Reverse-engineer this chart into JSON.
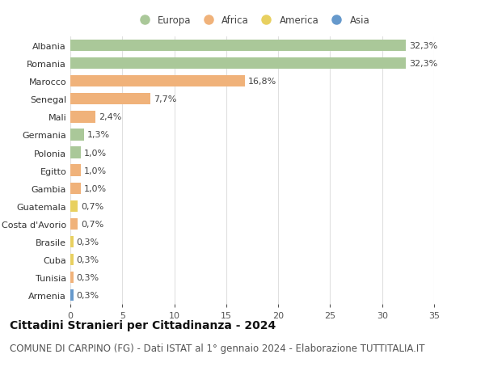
{
  "countries": [
    "Albania",
    "Romania",
    "Marocco",
    "Senegal",
    "Mali",
    "Germania",
    "Polonia",
    "Egitto",
    "Gambia",
    "Guatemala",
    "Costa d'Avorio",
    "Brasile",
    "Cuba",
    "Tunisia",
    "Armenia"
  ],
  "values": [
    32.3,
    32.3,
    16.8,
    7.7,
    2.4,
    1.3,
    1.0,
    1.0,
    1.0,
    0.7,
    0.7,
    0.3,
    0.3,
    0.3,
    0.3
  ],
  "labels": [
    "32,3%",
    "32,3%",
    "16,8%",
    "7,7%",
    "2,4%",
    "1,3%",
    "1,0%",
    "1,0%",
    "1,0%",
    "0,7%",
    "0,7%",
    "0,3%",
    "0,3%",
    "0,3%",
    "0,3%"
  ],
  "continents": [
    "Europa",
    "Europa",
    "Africa",
    "Africa",
    "Africa",
    "Europa",
    "Europa",
    "Africa",
    "Africa",
    "America",
    "Africa",
    "America",
    "America",
    "Africa",
    "Asia"
  ],
  "continent_colors": {
    "Europa": "#aac899",
    "Africa": "#f0b27a",
    "America": "#e8d060",
    "Asia": "#6699cc"
  },
  "legend_items": [
    "Europa",
    "Africa",
    "America",
    "Asia"
  ],
  "title": "Cittadini Stranieri per Cittadinanza - 2024",
  "subtitle": "COMUNE DI CARPINO (FG) - Dati ISTAT al 1° gennaio 2024 - Elaborazione TUTTITALIA.IT",
  "xlim": [
    0,
    35
  ],
  "xticks": [
    0,
    5,
    10,
    15,
    20,
    25,
    30,
    35
  ],
  "bg_color": "#ffffff",
  "grid_color": "#e0e0e0",
  "title_fontsize": 10,
  "subtitle_fontsize": 8.5,
  "label_fontsize": 8,
  "tick_fontsize": 8,
  "legend_fontsize": 8.5
}
